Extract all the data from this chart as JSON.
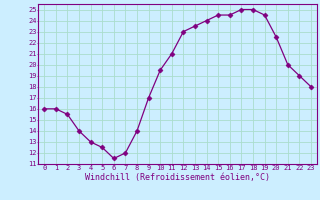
{
  "x": [
    0,
    1,
    2,
    3,
    4,
    5,
    6,
    7,
    8,
    9,
    10,
    11,
    12,
    13,
    14,
    15,
    16,
    17,
    18,
    19,
    20,
    21,
    22,
    23
  ],
  "y": [
    16,
    16,
    15.5,
    14,
    13,
    12.5,
    11.5,
    12,
    14,
    17,
    19.5,
    21,
    23,
    23.5,
    24,
    24.5,
    24.5,
    25,
    25,
    24.5,
    22.5,
    20,
    19,
    18
  ],
  "ylim": [
    11,
    25.5
  ],
  "yticks": [
    11,
    12,
    13,
    14,
    15,
    16,
    17,
    18,
    19,
    20,
    21,
    22,
    23,
    24,
    25
  ],
  "xticks": [
    0,
    1,
    2,
    3,
    4,
    5,
    6,
    7,
    8,
    9,
    10,
    11,
    12,
    13,
    14,
    15,
    16,
    17,
    18,
    19,
    20,
    21,
    22,
    23
  ],
  "xlabel": "Windchill (Refroidissement éolien,°C)",
  "line_color": "#800080",
  "marker": "D",
  "marker_size": 2.5,
  "bg_color": "#cceeff",
  "grid_color": "#aaddcc",
  "label_fontsize": 6,
  "tick_fontsize": 5
}
